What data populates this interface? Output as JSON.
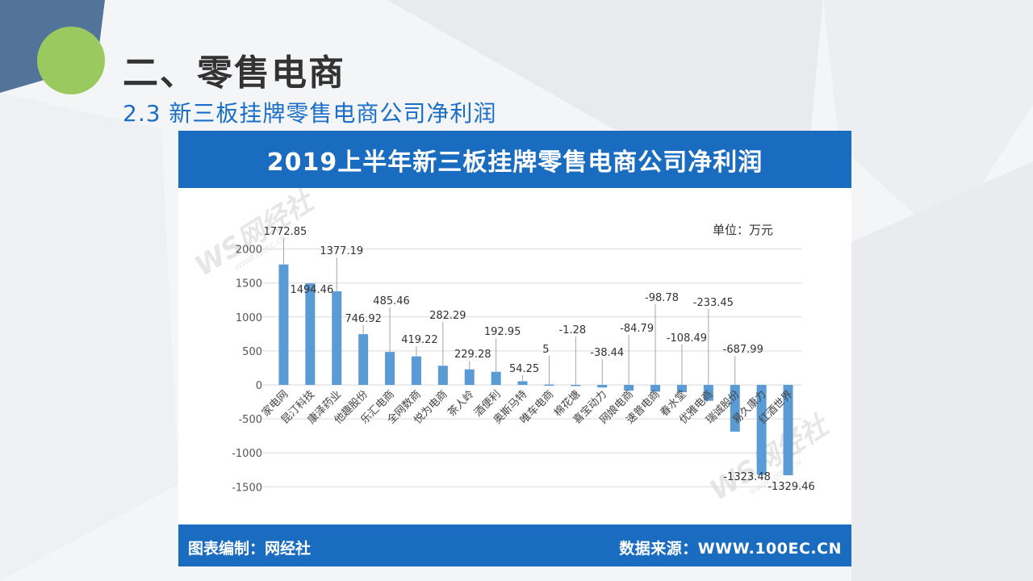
{
  "page": {
    "title": "二、零售电商",
    "subtitle": "2.3 新三板挂牌零售电商公司净利润"
  },
  "chart_header": "2019上半年新三板挂牌零售电商公司净利润",
  "unit": "单位：万元",
  "footer": {
    "left": "图表编制：网经社",
    "right": "数据来源：WWW.100EC.CN"
  },
  "watermark": {
    "logo": "WS网经社",
    "domain": "WWW.100EC.CN"
  },
  "colors": {
    "accent": "#1a6cc0",
    "bar": "#5b9bd5",
    "title_text": "#333333",
    "subtitle_text": "#1a6ec7"
  },
  "chart_data": {
    "type": "bar",
    "title": "2019上半年新三板挂牌零售电商公司净利润",
    "xlabel": "",
    "ylabel": "",
    "ylim": [
      -1500,
      2000
    ],
    "yticks": [
      2000,
      1500,
      1000,
      500,
      0,
      -500,
      -1000,
      -1500
    ],
    "categories": [
      "家电网",
      "昆汀科技",
      "康泽药业",
      "他趣股份",
      "乐汇电商",
      "全网数商",
      "悦为电商",
      "茶人岭",
      "酒便利",
      "奥斯马特",
      "唯车电商",
      "棉花塘",
      "喜宝动力",
      "网娘电商",
      "速普电商",
      "春水堂",
      "优雅电商",
      "瑞诚股份",
      "易久康力",
      "红酒世界"
    ],
    "values": [
      1772.85,
      1494.46,
      1377.19,
      746.92,
      485.46,
      419.22,
      282.29,
      229.28,
      192.95,
      54.25,
      5,
      -1.28,
      -38.44,
      -84.79,
      -98.78,
      -108.49,
      -233.45,
      -687.99,
      -1323.48,
      -1329.46
    ],
    "value_labels": [
      "1772.85",
      "1494.46",
      "1377.19",
      "746.92",
      "485.46",
      "419.22",
      "282.29",
      "229.28",
      "192.95",
      "54.25",
      "5",
      "-1.28",
      "-38.44",
      "-84.79",
      "-98.78",
      "-108.49",
      "-233.45",
      "-687.99",
      "-1323.48",
      "-1329.46"
    ],
    "grid": true,
    "legend": "none"
  }
}
